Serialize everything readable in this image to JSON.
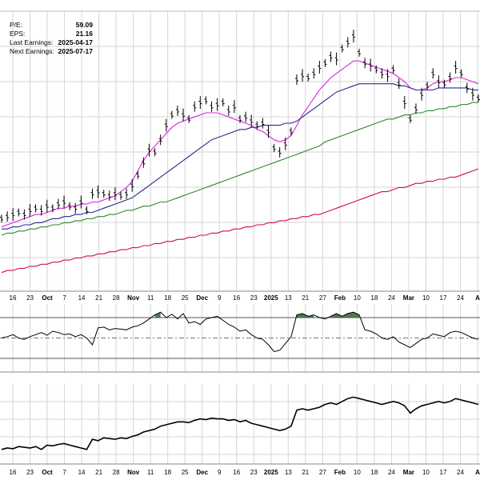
{
  "info": {
    "pe_label": "P/E:",
    "pe_value": "59.09",
    "eps_label": "EPS:",
    "eps_value": "21.16",
    "last_earnings_label": "Last Earnings:",
    "last_earnings_value": "2025-04-17",
    "next_earnings_label": "Next Earnings:",
    "next_earnings_value": "2025-07-17"
  },
  "colors": {
    "background": "#ffffff",
    "grid": "#d6d6d6",
    "price_bars": "#000000",
    "ma_short": "#e020e0",
    "ma_mid": "#2a2a8a",
    "ma_long": "#2e8b2e",
    "ma_longest": "#d0103a",
    "indicator_fill": "#4e7a4e"
  },
  "chart_data": {
    "type": "line",
    "x_tick_labels": [
      "16",
      "23",
      "Oct",
      "7",
      "14",
      "21",
      "28",
      "Nov",
      "11",
      "18",
      "25",
      "Dec",
      "9",
      "16",
      "23",
      "2025",
      "13",
      "21",
      "27",
      "Feb",
      "10",
      "18",
      "24",
      "Mar",
      "10",
      "17",
      "24",
      "A"
    ],
    "x_tick_bold": [
      false,
      false,
      true,
      false,
      false,
      false,
      false,
      true,
      false,
      false,
      false,
      true,
      false,
      false,
      false,
      true,
      false,
      false,
      false,
      true,
      false,
      false,
      false,
      true,
      false,
      false,
      false,
      true
    ],
    "grid": true,
    "main_panel": {
      "series": [
        {
          "key": "price",
          "values": [
            10,
            11,
            12,
            13,
            12,
            14,
            15,
            14,
            16,
            15,
            17,
            18,
            16,
            15,
            18,
            14,
            22,
            23,
            22,
            21,
            22,
            21,
            22,
            26,
            31,
            37,
            43,
            42,
            48,
            55,
            60,
            62,
            60,
            58,
            64,
            66,
            67,
            64,
            65,
            66,
            62,
            64,
            58,
            59,
            57,
            55,
            56,
            52,
            44,
            42,
            46,
            52,
            77,
            79,
            78,
            80,
            83,
            85,
            88,
            87,
            92,
            95,
            98,
            90,
            85,
            84,
            82,
            80,
            79,
            82,
            75,
            66,
            58,
            63,
            70,
            74,
            80,
            76,
            75,
            78,
            83,
            80,
            73,
            70,
            68
          ]
        },
        {
          "key": "ma_short",
          "values": [
            6,
            7,
            8,
            9,
            10,
            11,
            12,
            12,
            13,
            14,
            15,
            15,
            16,
            16,
            17,
            17,
            18,
            18,
            19,
            20,
            21,
            23,
            25,
            28,
            33,
            38,
            42,
            45,
            48,
            51,
            54,
            56,
            57,
            58,
            59,
            60,
            61,
            61,
            61,
            60,
            59,
            58,
            57,
            56,
            55,
            53,
            52,
            50,
            48,
            47,
            48,
            50,
            55,
            60,
            64,
            68,
            72,
            75,
            78,
            80,
            82,
            84,
            86,
            86,
            85,
            84,
            83,
            82,
            81,
            80,
            78,
            76,
            73,
            72,
            72,
            73,
            75,
            76,
            76,
            77,
            78,
            78,
            77,
            76,
            75
          ]
        },
        {
          "key": "ma_mid",
          "values": [
            5,
            5,
            6,
            6,
            7,
            7,
            8,
            8,
            9,
            10,
            10,
            11,
            11,
            12,
            12,
            13,
            13,
            14,
            15,
            16,
            17,
            18,
            19,
            20,
            22,
            24,
            26,
            28,
            30,
            32,
            34,
            36,
            38,
            40,
            42,
            44,
            46,
            48,
            49,
            50,
            51,
            52,
            53,
            53,
            54,
            54,
            55,
            55,
            55,
            55,
            56,
            56,
            57,
            59,
            61,
            63,
            65,
            67,
            69,
            71,
            72,
            73,
            74,
            75,
            75,
            75,
            75,
            75,
            75,
            75,
            74,
            74,
            73,
            72,
            72,
            72,
            72,
            73,
            73,
            73,
            73,
            73,
            73,
            72,
            72
          ]
        },
        {
          "key": "ma_long",
          "values": [
            2,
            3,
            3,
            4,
            4,
            5,
            5,
            6,
            6,
            7,
            7,
            8,
            8,
            9,
            9,
            10,
            10,
            11,
            11,
            12,
            12,
            13,
            14,
            14,
            15,
            16,
            16,
            17,
            18,
            18,
            19,
            20,
            21,
            22,
            23,
            24,
            25,
            26,
            27,
            28,
            29,
            30,
            31,
            32,
            33,
            34,
            35,
            36,
            37,
            38,
            39,
            40,
            41,
            42,
            43,
            44,
            45,
            47,
            48,
            49,
            50,
            51,
            52,
            53,
            54,
            55,
            56,
            57,
            58,
            58,
            59,
            60,
            60,
            61,
            61,
            62,
            62,
            63,
            63,
            64,
            64,
            65,
            65,
            66,
            66
          ]
        },
        {
          "key": "ma_longest",
          "values": [
            -16,
            -15,
            -15,
            -14,
            -14,
            -13,
            -13,
            -12,
            -12,
            -11,
            -11,
            -10,
            -10,
            -9,
            -9,
            -8,
            -8,
            -7,
            -7,
            -6,
            -6,
            -5,
            -5,
            -4,
            -4,
            -3,
            -3,
            -2,
            -2,
            -1,
            -1,
            0,
            0,
            1,
            1,
            2,
            2,
            3,
            3,
            4,
            4,
            5,
            5,
            6,
            6,
            7,
            7,
            8,
            8,
            9,
            9,
            10,
            10,
            11,
            11,
            12,
            12,
            13,
            14,
            15,
            16,
            17,
            18,
            19,
            20,
            21,
            22,
            23,
            23,
            24,
            25,
            25,
            26,
            27,
            27,
            28,
            28,
            29,
            29,
            30,
            30,
            31,
            32,
            33,
            34
          ]
        }
      ]
    },
    "indicator_panel": {
      "upper": 80,
      "mid": 50,
      "lower": 20,
      "values": [
        50,
        52,
        55,
        50,
        48,
        52,
        55,
        58,
        54,
        60,
        58,
        55,
        56,
        52,
        55,
        50,
        40,
        65,
        66,
        62,
        64,
        63,
        62,
        66,
        68,
        72,
        78,
        84,
        88,
        80,
        85,
        78,
        86,
        72,
        74,
        70,
        78,
        80,
        82,
        76,
        70,
        66,
        60,
        62,
        55,
        50,
        48,
        40,
        30,
        32,
        42,
        52,
        84,
        86,
        82,
        84,
        80,
        78,
        82,
        86,
        82,
        86,
        88,
        84,
        62,
        60,
        56,
        50,
        48,
        52,
        44,
        40,
        36,
        42,
        48,
        50,
        56,
        54,
        52,
        58,
        60,
        58,
        54,
        50,
        48
      ]
    },
    "lower_panel": {
      "values": [
        20,
        22,
        21,
        24,
        23,
        22,
        24,
        20,
        26,
        25,
        27,
        28,
        26,
        24,
        22,
        20,
        34,
        32,
        36,
        35,
        34,
        36,
        35,
        38,
        40,
        44,
        46,
        48,
        52,
        54,
        56,
        58,
        58,
        57,
        60,
        62,
        61,
        63,
        62,
        62,
        60,
        61,
        58,
        60,
        56,
        54,
        52,
        50,
        48,
        46,
        48,
        52,
        74,
        76,
        74,
        76,
        78,
        82,
        84,
        82,
        86,
        90,
        92,
        90,
        88,
        86,
        84,
        82,
        84,
        86,
        84,
        80,
        70,
        76,
        80,
        82,
        84,
        86,
        84,
        86,
        90,
        88,
        86,
        84,
        82
      ]
    }
  }
}
